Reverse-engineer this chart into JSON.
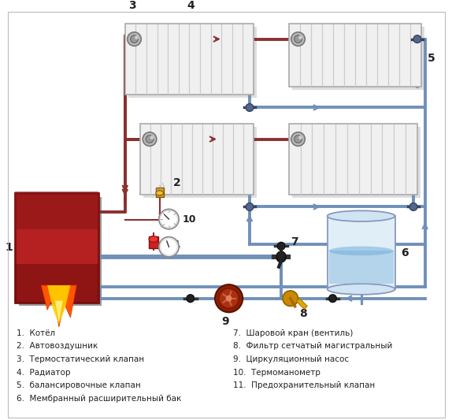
{
  "bg_color": "#ffffff",
  "hot_color": "#8B3030",
  "cold_color": "#7090B8",
  "legend_left": [
    "1.  Котёл",
    "2.  Автовоздушник",
    "3.  Термостатический клапан",
    "4.  Радиатор",
    "5.  балансировочные клапан",
    "6.  Мембранный расширительный бак"
  ],
  "legend_right": [
    "7.  Шаровой кран (вентиль)",
    "8.  Фильтр сетчатый магистральный",
    "9.  Циркуляционный насос",
    "10.  Термоманометр",
    "11.  Предохранительный клапан"
  ],
  "rad_fill": "#f0f0f0",
  "rad_edge": "#aaaaaa",
  "pipe_lw": 2.8,
  "fs_legend": 7.5,
  "fs_label": 9
}
